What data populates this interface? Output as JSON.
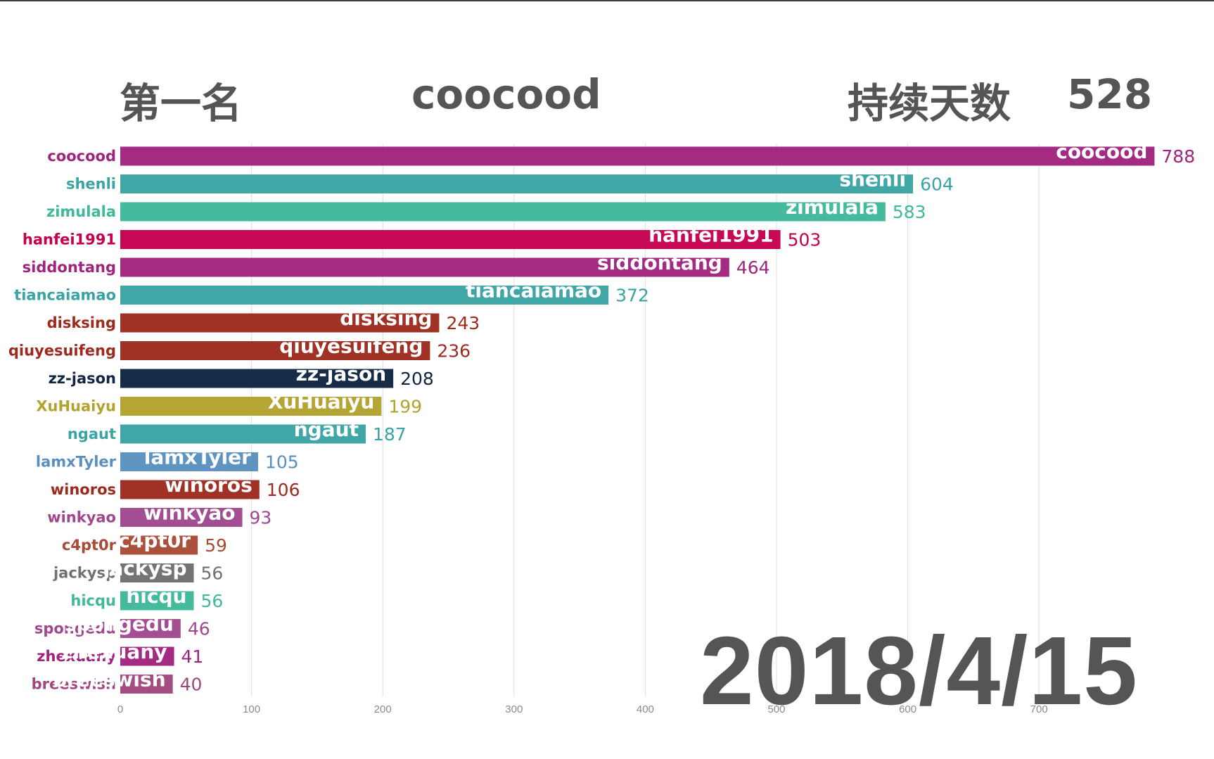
{
  "header": {
    "rank_label": "第一名",
    "leader_name": "coocood",
    "days_label": "持续天数",
    "days_value": "528"
  },
  "date": "2018/4/15",
  "chart_data": {
    "type": "bar",
    "orientation": "horizontal",
    "categories": [
      "coocood",
      "shenli",
      "zimulala",
      "hanfei1991",
      "siddontang",
      "tiancaiamao",
      "disksing",
      "qiuyesuifeng",
      "zz-jason",
      "XuHuaiyu",
      "ngaut",
      "lamxTyler",
      "winoros",
      "winkyao",
      "c4pt0r",
      "jackysp",
      "hicqu",
      "spongedu",
      "zhexuany",
      "breeswish"
    ],
    "values": [
      788,
      604,
      583,
      503,
      464,
      372,
      243,
      236,
      208,
      199,
      187,
      105,
      106,
      93,
      59,
      56,
      56,
      46,
      41,
      40
    ],
    "colors": [
      "#a0247e",
      "#3aa3a3",
      "#40b89a",
      "#c4004f",
      "#a0247e",
      "#3aa3a3",
      "#9c2a1e",
      "#9c2a1e",
      "#0f2540",
      "#b3a22e",
      "#3aa3a3",
      "#5a8fc0",
      "#9c2a1e",
      "#a0488e",
      "#a84a36",
      "#707070",
      "#40b89a",
      "#a0488e",
      "#a0247e",
      "#a0487e"
    ],
    "xlim": [
      0,
      790
    ],
    "xticks": [
      0,
      100,
      200,
      300,
      400,
      500,
      600,
      700
    ],
    "grid": true,
    "inbar_labels": true
  }
}
